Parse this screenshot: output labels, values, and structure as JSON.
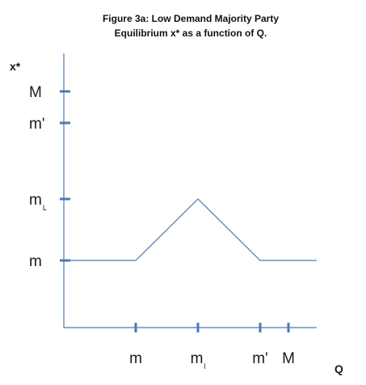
{
  "chart_data": {
    "type": "line",
    "title_lines": [
      "Figure 3a: Low Demand Majority Party",
      "Equilibrium x* as a function of Q."
    ],
    "xlabel": "Q",
    "ylabel": "x*",
    "x_ticks": [
      {
        "base": "m",
        "sub": ""
      },
      {
        "base": "m",
        "sub": "l"
      },
      {
        "base": "m'",
        "sub": ""
      },
      {
        "base": "M",
        "sub": ""
      }
    ],
    "y_ticks": [
      {
        "base": "m",
        "sub": ""
      },
      {
        "base": "m",
        "sub": "L"
      },
      {
        "base": "m'",
        "sub": ""
      },
      {
        "base": "M",
        "sub": ""
      }
    ],
    "series": [
      {
        "color": "#4a7ab5",
        "points": [
          {
            "x": "origin",
            "y": "m"
          },
          {
            "x": "m",
            "y": "m"
          },
          {
            "x": "m_l",
            "y": "m_L"
          },
          {
            "x": "m'",
            "y": "m"
          },
          {
            "x": "end",
            "y": "m"
          }
        ]
      }
    ],
    "grid": false,
    "colors": {
      "axis": "#4a7ab5",
      "line": "#4a7ab5",
      "text": "#1a1a1a"
    }
  }
}
